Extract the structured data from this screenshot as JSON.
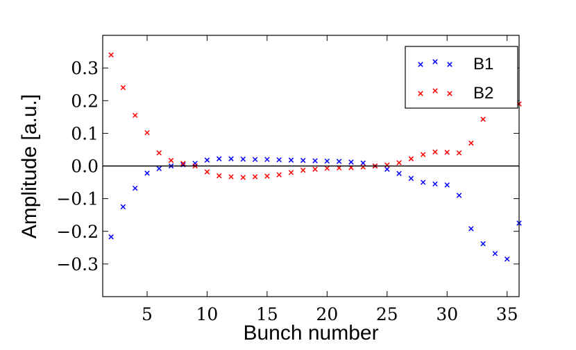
{
  "chart_data": {
    "type": "scatter",
    "title": "",
    "xlabel": "Bunch number",
    "ylabel": "Amplitude [a.u.]",
    "xlim": [
      1.3,
      36
    ],
    "ylim": [
      -0.4,
      0.4
    ],
    "xticks": [
      5,
      10,
      15,
      20,
      25,
      30,
      35
    ],
    "yticks": [
      0.3,
      0.2,
      0.1,
      0.0,
      -0.1,
      -0.2,
      -0.3
    ],
    "ytick_labels": [
      "0.3",
      "0.2",
      "0.1",
      "0.0",
      "−0.1",
      "−0.2",
      "−0.3"
    ],
    "horizontal_line": 0,
    "grid": false,
    "legend_position": "top-right",
    "marker": "x",
    "x": [
      2,
      3,
      4,
      5,
      6,
      7,
      8,
      9,
      10,
      11,
      12,
      13,
      14,
      15,
      16,
      17,
      18,
      19,
      20,
      21,
      22,
      23,
      24,
      25,
      26,
      27,
      28,
      29,
      30,
      31,
      32,
      33,
      34,
      35,
      36
    ],
    "series": [
      {
        "name": "B1",
        "color": "#0000ff",
        "values": [
          -0.217,
          -0.125,
          -0.068,
          -0.022,
          -0.008,
          0.0,
          0.004,
          0.008,
          0.018,
          0.022,
          0.022,
          0.021,
          0.02,
          0.02,
          0.019,
          0.018,
          0.017,
          0.016,
          0.015,
          0.014,
          0.012,
          0.009,
          0.0,
          -0.01,
          -0.023,
          -0.038,
          -0.05,
          -0.055,
          -0.058,
          -0.09,
          -0.192,
          -0.238,
          -0.268,
          -0.285,
          -0.175
        ]
      },
      {
        "name": "B2",
        "color": "#ff0000",
        "values": [
          0.34,
          0.24,
          0.155,
          0.102,
          0.04,
          0.017,
          0.008,
          0.0,
          -0.018,
          -0.03,
          -0.033,
          -0.035,
          -0.033,
          -0.031,
          -0.027,
          -0.02,
          -0.013,
          -0.01,
          -0.007,
          -0.006,
          -0.005,
          -0.003,
          0.0,
          0.003,
          0.01,
          0.022,
          0.035,
          0.043,
          0.042,
          0.04,
          0.07,
          0.143,
          0.26,
          0.33,
          0.19
        ]
      }
    ]
  }
}
